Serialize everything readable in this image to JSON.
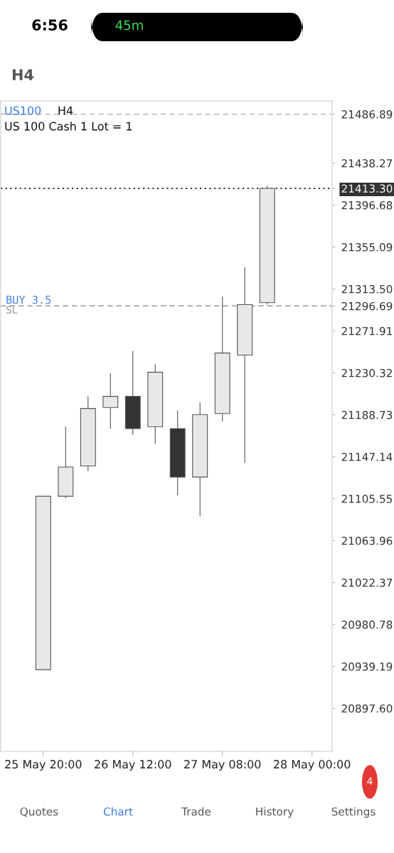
{
  "chart_data": {
    "type": "candlestick",
    "title": "US100",
    "subtitle": "US 100 Cash 1 Lot = 1",
    "categories": [
      "25 May 20:00",
      null,
      null,
      null,
      "26 May 12:00",
      null,
      null,
      null,
      "27 May 08:00",
      null,
      null,
      null,
      "28 May 00:00"
    ],
    "ohlc": [
      [
        20936,
        21108,
        20936,
        21108
      ],
      [
        21108,
        21177,
        21106,
        21137
      ],
      [
        21138,
        21207,
        21133,
        21195
      ],
      [
        21196,
        21230,
        21175,
        21207
      ],
      [
        21207,
        21252,
        21169,
        21175
      ],
      [
        21177,
        21239,
        21160,
        21231
      ],
      [
        21175,
        21193,
        21109,
        21127
      ],
      [
        21127,
        21201,
        21088,
        21189
      ],
      [
        21190,
        21306,
        21182,
        21250
      ],
      [
        21248,
        21335,
        21141,
        21298
      ],
      [
        21300,
        21416,
        21298,
        21413.3
      ],
      null,
      null
    ],
    "colors": [
      "#e8e8e8",
      "#e8e8e8",
      "#e8e8e8",
      "#e8e8e8",
      "#333333",
      "#e8e8e8",
      "#333333",
      "#e8e8e8",
      "#e8e8e8",
      "#e8e8e8",
      "#e8e8e8",
      null,
      null
    ],
    "ylim": [
      20855,
      21500
    ],
    "yticks": [
      {
        "value": 20897.6,
        "label": "20897.60"
      },
      20939.19,
      20980.78,
      21022.37,
      21063.96,
      21105.55,
      21147.14,
      21188.73,
      21230.32,
      21271.91,
      21296.69,
      {
        "value": 21313.5,
        "label": "21313.50"
      },
      21355.09,
      21396.68,
      {
        "value": 21413.3,
        "label": "21413.30"
      },
      21438.27,
      21486.89
    ],
    "ref_lines": [
      {
        "axis": "y",
        "value": 21486.89,
        "line_style": "dashed",
        "color": "#aaaaaa"
      },
      {
        "axis": "y",
        "value": 21413.3,
        "line_style": "dotted",
        "color": "#333333"
      },
      {
        "axis": "y",
        "value": 21296.69,
        "label": "BUY 3.5",
        "line_style": "dashed",
        "color": "#4a86e8"
      },
      {
        "axis": "y",
        "value": 21296.69,
        "label": "SL",
        "line_style": "dashed",
        "color": "#999999"
      }
    ],
    "annotations": [
      "6:56",
      "45m",
      "H4",
      "H4",
      "Quotes",
      "Chart",
      "Trade",
      "History",
      "Settings",
      "4"
    ],
    "grid": false
  }
}
